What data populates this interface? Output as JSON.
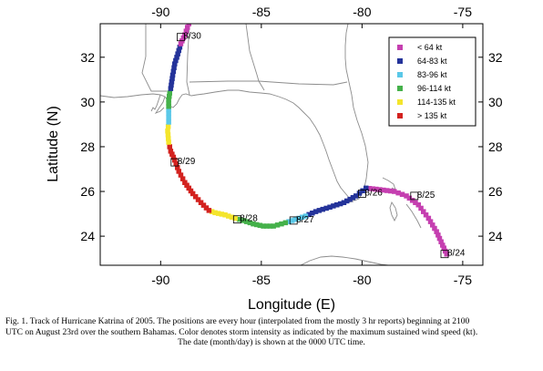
{
  "chart_data": {
    "type": "scatter",
    "xlabel": "Longitude (E)",
    "ylabel": "Latitude (N)",
    "xlim": [
      -93,
      -74
    ],
    "ylim": [
      22.7,
      33.5
    ],
    "x_ticks": [
      -90,
      -85,
      -80,
      -75
    ],
    "y_ticks": [
      24,
      26,
      28,
      30,
      32
    ],
    "x_tick_labels": [
      "-90",
      "-85",
      "-80",
      "-75"
    ],
    "y_tick_labels": [
      "24",
      "26",
      "28",
      "30",
      "32"
    ],
    "grid": false,
    "legend_position": "top-right",
    "categories": [
      {
        "label": "< 64 kt",
        "color": "#c53fb0"
      },
      {
        "label": "64-83 kt",
        "color": "#24339a"
      },
      {
        "label": "83-96 kt",
        "color": "#5ac8e8"
      },
      {
        "label": "96-114 kt",
        "color": "#45b14a"
      },
      {
        "label": "114-135 kt",
        "color": "#f4e52c"
      },
      {
        "label": "> 135 kt",
        "color": "#d3221f"
      }
    ],
    "segments": [
      {
        "category": 0,
        "points": [
          [
            -75.8,
            23.2
          ],
          [
            -76.0,
            23.6
          ],
          [
            -76.3,
            24.2
          ],
          [
            -76.7,
            24.8
          ],
          [
            -77.2,
            25.4
          ],
          [
            -77.8,
            25.8
          ],
          [
            -78.4,
            26.0
          ],
          [
            -79.3,
            26.1
          ],
          [
            -79.8,
            26.15
          ]
        ]
      },
      {
        "category": 1,
        "points": [
          [
            -79.8,
            26.15
          ],
          [
            -80.3,
            25.8
          ],
          [
            -80.9,
            25.5
          ],
          [
            -81.6,
            25.3
          ],
          [
            -82.3,
            25.1
          ],
          [
            -82.8,
            24.9
          ]
        ]
      },
      {
        "category": 2,
        "points": [
          [
            -82.8,
            24.9
          ],
          [
            -83.3,
            24.75
          ],
          [
            -83.8,
            24.6
          ]
        ]
      },
      {
        "category": 3,
        "points": [
          [
            -83.8,
            24.6
          ],
          [
            -84.4,
            24.45
          ],
          [
            -84.9,
            24.45
          ],
          [
            -85.4,
            24.55
          ],
          [
            -85.9,
            24.7
          ],
          [
            -86.3,
            24.8
          ]
        ]
      },
      {
        "category": 4,
        "points": [
          [
            -86.3,
            24.8
          ],
          [
            -86.8,
            24.95
          ],
          [
            -87.3,
            25.05
          ],
          [
            -87.6,
            25.15
          ]
        ]
      },
      {
        "category": 5,
        "points": [
          [
            -87.6,
            25.15
          ],
          [
            -88.0,
            25.5
          ],
          [
            -88.4,
            25.9
          ],
          [
            -88.8,
            26.4
          ],
          [
            -89.1,
            26.9
          ],
          [
            -89.3,
            27.4
          ],
          [
            -89.5,
            27.8
          ],
          [
            -89.6,
            28.2
          ]
        ]
      },
      {
        "category": 4,
        "points": [
          [
            -89.6,
            28.2
          ],
          [
            -89.65,
            28.7
          ],
          [
            -89.6,
            29.1
          ]
        ]
      },
      {
        "category": 2,
        "points": [
          [
            -89.6,
            29.1
          ],
          [
            -89.6,
            29.5
          ],
          [
            -89.6,
            29.8
          ]
        ]
      },
      {
        "category": 3,
        "points": [
          [
            -89.6,
            29.8
          ],
          [
            -89.6,
            30.1
          ],
          [
            -89.55,
            30.4
          ],
          [
            -89.5,
            30.6
          ]
        ]
      },
      {
        "category": 1,
        "points": [
          [
            -89.5,
            30.6
          ],
          [
            -89.4,
            31.2
          ],
          [
            -89.3,
            31.7
          ],
          [
            -89.1,
            32.3
          ],
          [
            -89.0,
            32.6
          ]
        ]
      },
      {
        "category": 0,
        "points": [
          [
            -89.0,
            32.6
          ],
          [
            -88.8,
            33.0
          ],
          [
            -88.6,
            33.5
          ]
        ]
      }
    ],
    "date_markers": [
      {
        "label": "8/24",
        "lon": -75.9,
        "lat": 23.2
      },
      {
        "label": "8/25",
        "lon": -77.4,
        "lat": 25.8
      },
      {
        "label": "8/26",
        "lon": -80.0,
        "lat": 25.9
      },
      {
        "label": "8/27",
        "lon": -83.4,
        "lat": 24.7
      },
      {
        "label": "8/28",
        "lon": -86.2,
        "lat": 24.75
      },
      {
        "label": "8/29",
        "lon": -89.3,
        "lat": 27.3
      },
      {
        "label": "8/30",
        "lon": -89.0,
        "lat": 32.9
      }
    ]
  },
  "caption": {
    "line1": "Fig. 1. Track of Hurricane Katrina of 2005. The positions are every hour (interpolated from the mostly 3 hr reports) beginning at 2100",
    "line2": "UTC on August 23rd over the southern Bahamas.  Color denotes storm intensity as indicated by the maximum sustained wind speed (kt).",
    "line3": "The date (month/day) is shown at the 0000 UTC time."
  }
}
